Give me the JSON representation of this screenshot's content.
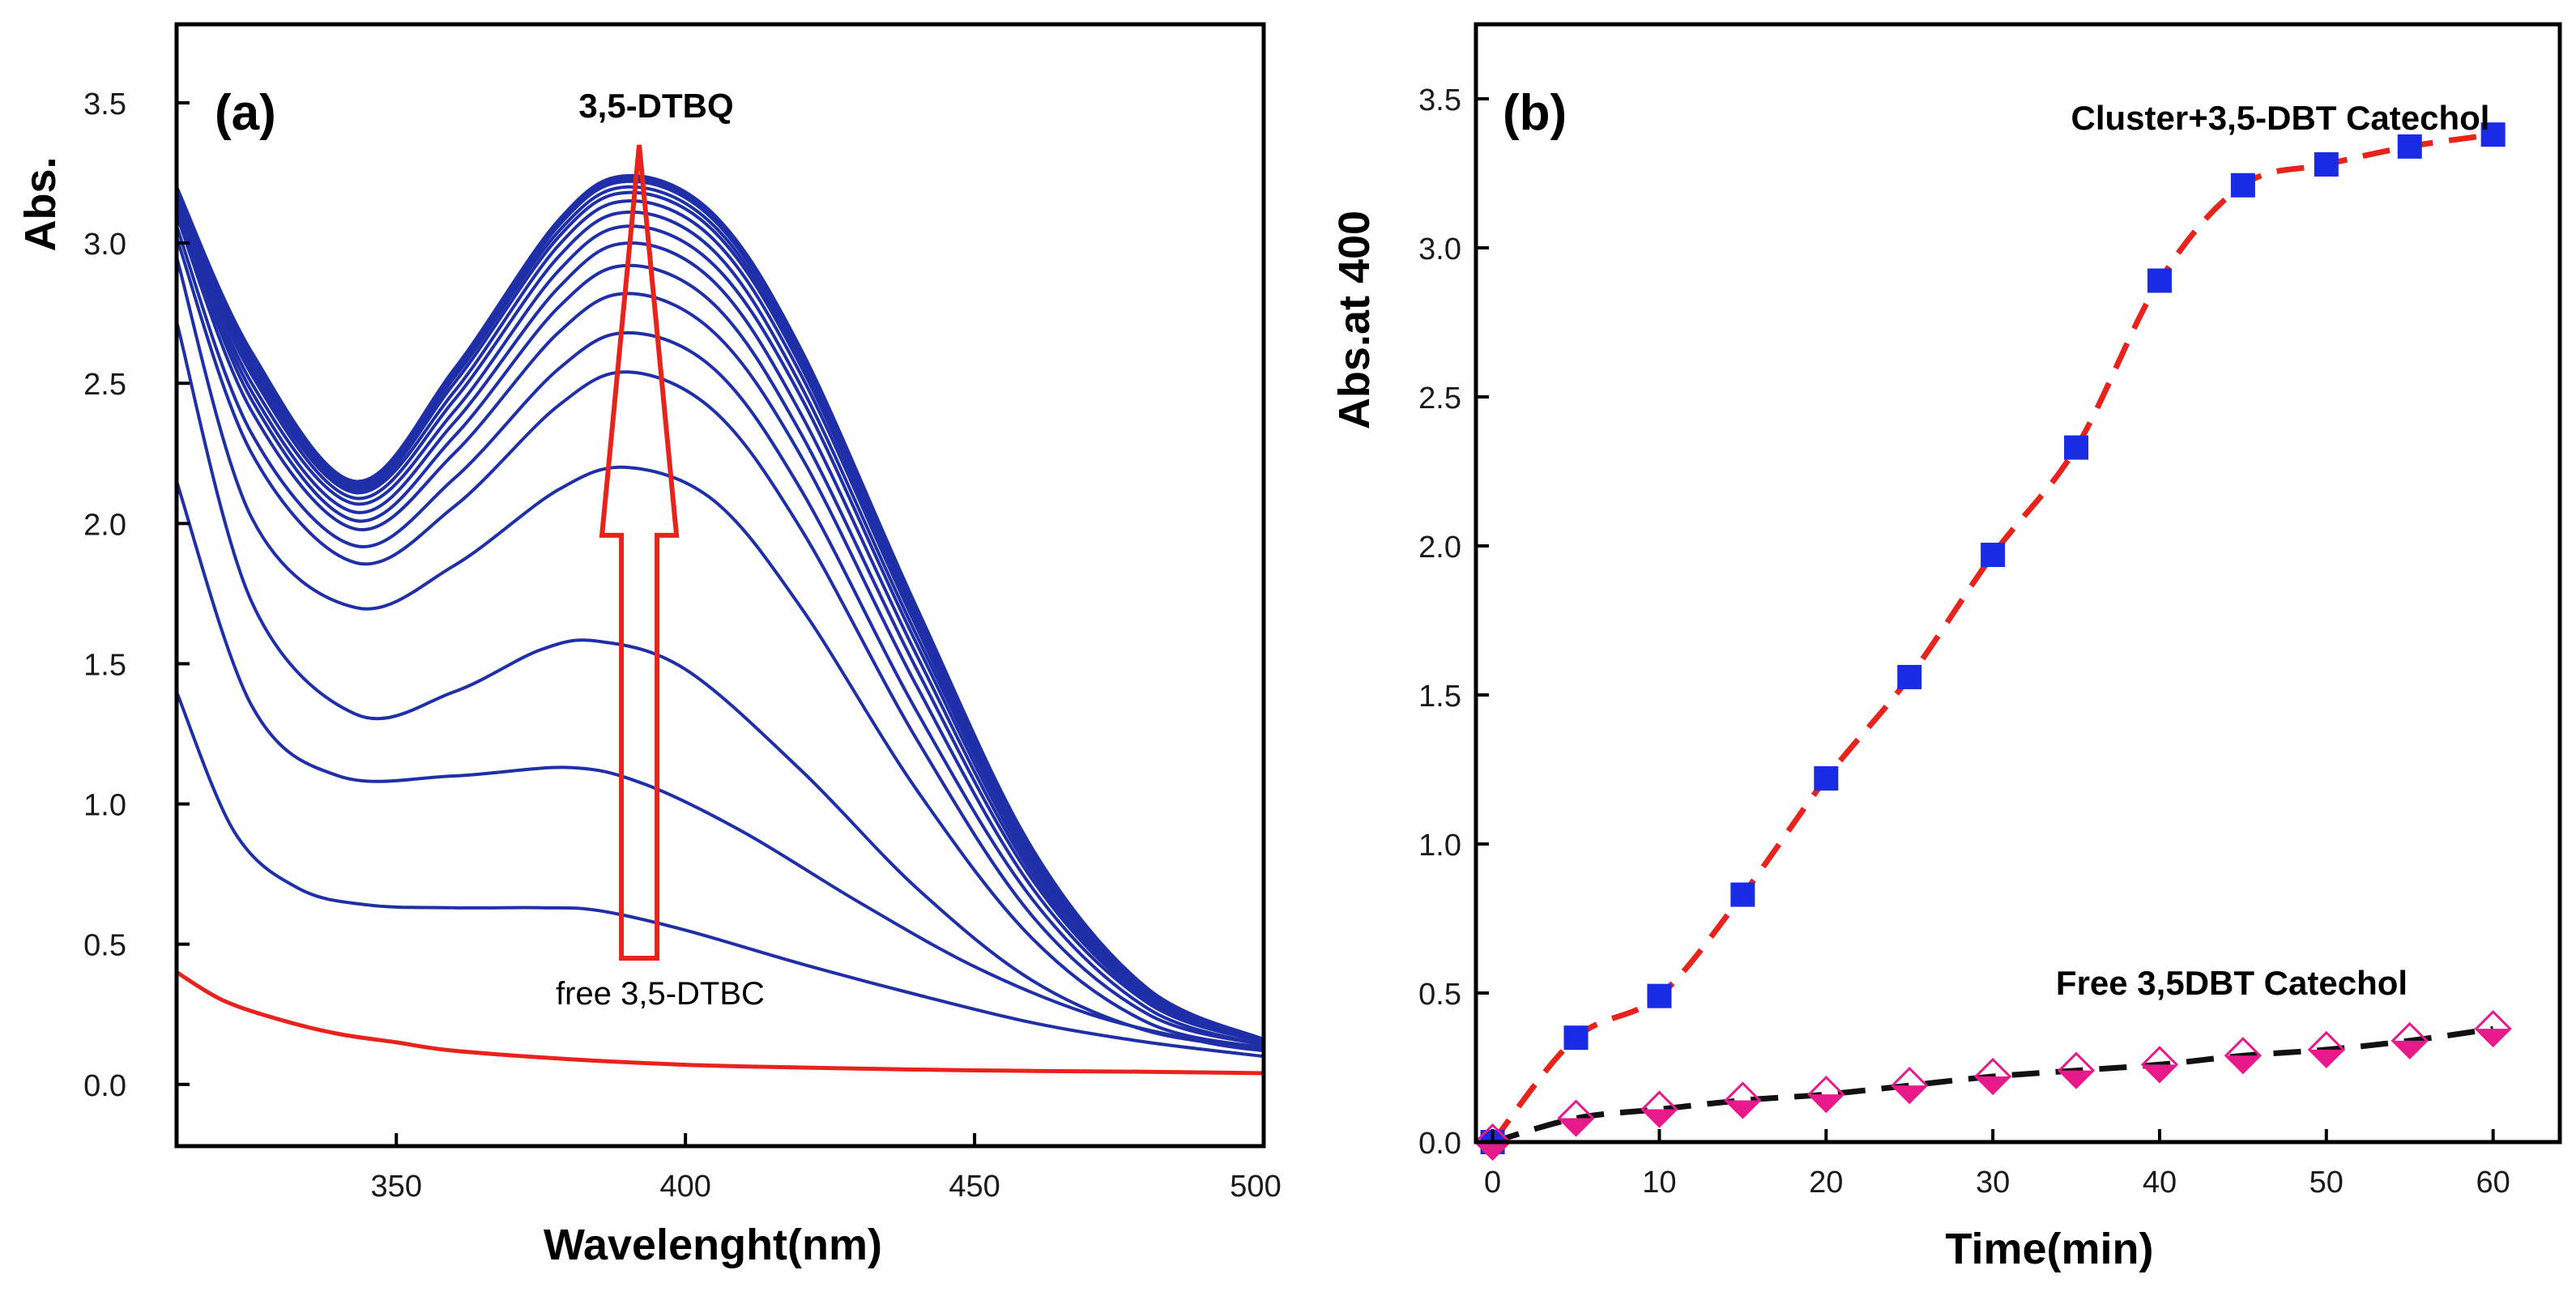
{
  "chart_data": [
    {
      "type": "line",
      "panel_label": "(a)",
      "title": "",
      "xlabel": "Wavelenght(nm)",
      "ylabel": "Abs.",
      "xlim": [
        312,
        500
      ],
      "ylim": [
        -0.22,
        3.78
      ],
      "xticks": [
        350,
        400,
        450,
        500
      ],
      "yticks": [
        0.0,
        0.5,
        1.0,
        1.5,
        2.0,
        2.5,
        3.0,
        3.5
      ],
      "xtick_labels": [
        "350",
        "400",
        "450",
        "500"
      ],
      "ytick_labels": [
        "0.0",
        "0.5",
        "1.0",
        "1.5",
        "2.0",
        "2.5",
        "3.0",
        "3.5"
      ],
      "annotations": {
        "top": "3,5-DTBQ",
        "bottom": "free 3,5-DTBC",
        "arrow_from": [
          392,
          0.45
        ],
        "arrow_to": [
          392,
          3.35
        ]
      },
      "colors": {
        "spectra": "#1f2fa8",
        "reference": "#e8231b",
        "arrow": "#e8231b"
      },
      "series": [
        {
          "name": "free 3,5-DTBC",
          "color": "#e8231b",
          "x": [
            312,
            320,
            330,
            340,
            350,
            360,
            380,
            400,
            420,
            450,
            480,
            500
          ],
          "y": [
            0.4,
            0.3,
            0.23,
            0.18,
            0.15,
            0.12,
            0.09,
            0.07,
            0.06,
            0.05,
            0.045,
            0.04
          ]
        },
        {
          "name": "scan 1",
          "x": [
            312,
            322,
            333,
            345,
            360,
            375,
            385,
            400,
            420,
            440,
            460,
            480,
            500
          ],
          "y": [
            1.4,
            0.9,
            0.7,
            0.64,
            0.63,
            0.63,
            0.62,
            0.55,
            0.43,
            0.32,
            0.22,
            0.15,
            0.1
          ]
        },
        {
          "name": "scan 2",
          "x": [
            312,
            325,
            340,
            360,
            380,
            393,
            410,
            430,
            450,
            470,
            490,
            500
          ],
          "y": [
            2.15,
            1.35,
            1.1,
            1.1,
            1.13,
            1.07,
            0.9,
            0.65,
            0.42,
            0.25,
            0.15,
            0.12
          ]
        },
        {
          "name": "scan 3",
          "x": [
            312,
            325,
            343,
            360,
            375,
            385,
            400,
            420,
            440,
            460,
            480,
            500
          ],
          "y": [
            2.72,
            1.72,
            1.32,
            1.4,
            1.55,
            1.58,
            1.48,
            1.12,
            0.7,
            0.37,
            0.19,
            0.13
          ]
        },
        {
          "name": "scan 4",
          "x": [
            312,
            325,
            343,
            360,
            378,
            390,
            405,
            420,
            440,
            460,
            480,
            500
          ],
          "y": [
            2.95,
            2.02,
            1.7,
            1.85,
            2.12,
            2.2,
            2.08,
            1.7,
            1.05,
            0.52,
            0.22,
            0.13
          ]
        },
        {
          "name": "scan 5",
          "x": [
            312,
            325,
            343,
            360,
            378,
            390,
            405,
            420,
            440,
            460,
            480,
            500
          ],
          "y": [
            3.02,
            2.25,
            1.86,
            2.06,
            2.42,
            2.54,
            2.4,
            1.98,
            1.23,
            0.6,
            0.25,
            0.14
          ]
        },
        {
          "name": "scan 6",
          "x": [
            312,
            325,
            343,
            360,
            378,
            390,
            405,
            420,
            440,
            460,
            480,
            500
          ],
          "y": [
            3.06,
            2.32,
            1.92,
            2.16,
            2.55,
            2.68,
            2.55,
            2.12,
            1.33,
            0.66,
            0.27,
            0.14
          ]
        },
        {
          "name": "scan 7",
          "x": [
            312,
            325,
            343,
            360,
            378,
            390,
            405,
            420,
            440,
            460,
            480,
            500
          ],
          "y": [
            3.1,
            2.4,
            1.98,
            2.25,
            2.68,
            2.82,
            2.68,
            2.24,
            1.42,
            0.7,
            0.29,
            0.15
          ]
        },
        {
          "name": "scan 8",
          "x": [
            312,
            325,
            343,
            360,
            378,
            390,
            405,
            420,
            440,
            460,
            480,
            500
          ],
          "y": [
            3.12,
            2.44,
            2.01,
            2.31,
            2.77,
            2.92,
            2.78,
            2.32,
            1.48,
            0.73,
            0.3,
            0.15
          ]
        },
        {
          "name": "scan 9",
          "x": [
            312,
            325,
            343,
            360,
            378,
            390,
            405,
            420,
            440,
            460,
            480,
            500
          ],
          "y": [
            3.14,
            2.47,
            2.04,
            2.36,
            2.84,
            3.0,
            2.86,
            2.39,
            1.53,
            0.75,
            0.31,
            0.15
          ]
        },
        {
          "name": "scan 10",
          "x": [
            312,
            325,
            343,
            360,
            378,
            390,
            405,
            420,
            440,
            460,
            480,
            500
          ],
          "y": [
            3.15,
            2.5,
            2.07,
            2.4,
            2.9,
            3.06,
            2.92,
            2.45,
            1.57,
            0.77,
            0.32,
            0.15
          ]
        },
        {
          "name": "scan 11",
          "x": [
            312,
            325,
            343,
            360,
            378,
            390,
            405,
            420,
            440,
            460,
            480,
            500
          ],
          "y": [
            3.16,
            2.53,
            2.09,
            2.44,
            2.95,
            3.11,
            2.97,
            2.49,
            1.6,
            0.79,
            0.32,
            0.16
          ]
        },
        {
          "name": "scan 12",
          "x": [
            312,
            325,
            343,
            360,
            378,
            390,
            405,
            420,
            440,
            460,
            480,
            500
          ],
          "y": [
            3.17,
            2.55,
            2.11,
            2.47,
            2.99,
            3.15,
            3.01,
            2.53,
            1.63,
            0.8,
            0.33,
            0.16
          ]
        },
        {
          "name": "scan 13",
          "x": [
            312,
            325,
            343,
            360,
            378,
            390,
            405,
            420,
            440,
            460,
            480,
            500
          ],
          "y": [
            3.18,
            2.57,
            2.12,
            2.5,
            3.02,
            3.18,
            3.04,
            2.56,
            1.65,
            0.81,
            0.33,
            0.16
          ]
        },
        {
          "name": "scan 14",
          "x": [
            312,
            325,
            343,
            360,
            378,
            390,
            405,
            420,
            440,
            460,
            480,
            500
          ],
          "y": [
            3.18,
            2.58,
            2.13,
            2.52,
            3.04,
            3.2,
            3.06,
            2.58,
            1.67,
            0.82,
            0.34,
            0.16
          ]
        },
        {
          "name": "scan 15",
          "x": [
            312,
            325,
            343,
            360,
            378,
            390,
            405,
            420,
            440,
            460,
            480,
            500
          ],
          "y": [
            3.19,
            2.59,
            2.14,
            2.53,
            3.06,
            3.22,
            3.08,
            2.6,
            1.68,
            0.83,
            0.34,
            0.16
          ]
        },
        {
          "name": "scan 16",
          "x": [
            312,
            325,
            343,
            360,
            378,
            390,
            405,
            420,
            440,
            460,
            480,
            500
          ],
          "y": [
            3.2,
            2.6,
            2.15,
            2.54,
            3.07,
            3.23,
            3.09,
            2.61,
            1.69,
            0.83,
            0.34,
            0.16
          ]
        },
        {
          "name": "scan 17",
          "x": [
            312,
            325,
            343,
            360,
            378,
            390,
            405,
            420,
            440,
            460,
            480,
            500
          ],
          "y": [
            3.2,
            2.61,
            2.15,
            2.55,
            3.08,
            3.24,
            3.1,
            2.62,
            1.7,
            0.84,
            0.34,
            0.16
          ]
        }
      ]
    },
    {
      "type": "line",
      "panel_label": "(b)",
      "title": "",
      "xlabel": "Time(min)",
      "ylabel": "Abs.at 400",
      "xlim": [
        -1,
        64
      ],
      "ylim": [
        0,
        3.75
      ],
      "xticks": [
        0,
        10,
        20,
        30,
        40,
        50,
        60
      ],
      "yticks": [
        0.0,
        0.5,
        1.0,
        1.5,
        2.0,
        2.5,
        3.0,
        3.5
      ],
      "xtick_labels": [
        "0",
        "10",
        "20",
        "30",
        "40",
        "50",
        "60"
      ],
      "ytick_labels": [
        "0.0",
        "0.5",
        "1.0",
        "1.5",
        "2.0",
        "2.5",
        "3.0",
        "3.5"
      ],
      "series": [
        {
          "name": "Cluster+3,5-DBT Catechol",
          "marker": "square",
          "marker_color": "#1a2be6",
          "fit_color": "#e8231b",
          "x": [
            0,
            5,
            10,
            15,
            20,
            25,
            30,
            35,
            40,
            45,
            50,
            55,
            60
          ],
          "y": [
            0.0,
            0.35,
            0.49,
            0.83,
            1.22,
            1.56,
            1.97,
            2.33,
            2.89,
            3.21,
            3.28,
            3.34,
            3.38
          ]
        },
        {
          "name": "Free 3,5DBT Catechol",
          "marker": "diamond",
          "marker_color": "#e8198a",
          "fit_color": "#111111",
          "x": [
            0,
            5,
            10,
            15,
            20,
            25,
            30,
            35,
            40,
            45,
            50,
            55,
            60
          ],
          "y": [
            0.0,
            0.08,
            0.11,
            0.14,
            0.16,
            0.19,
            0.22,
            0.24,
            0.26,
            0.29,
            0.31,
            0.34,
            0.38
          ]
        }
      ]
    }
  ]
}
